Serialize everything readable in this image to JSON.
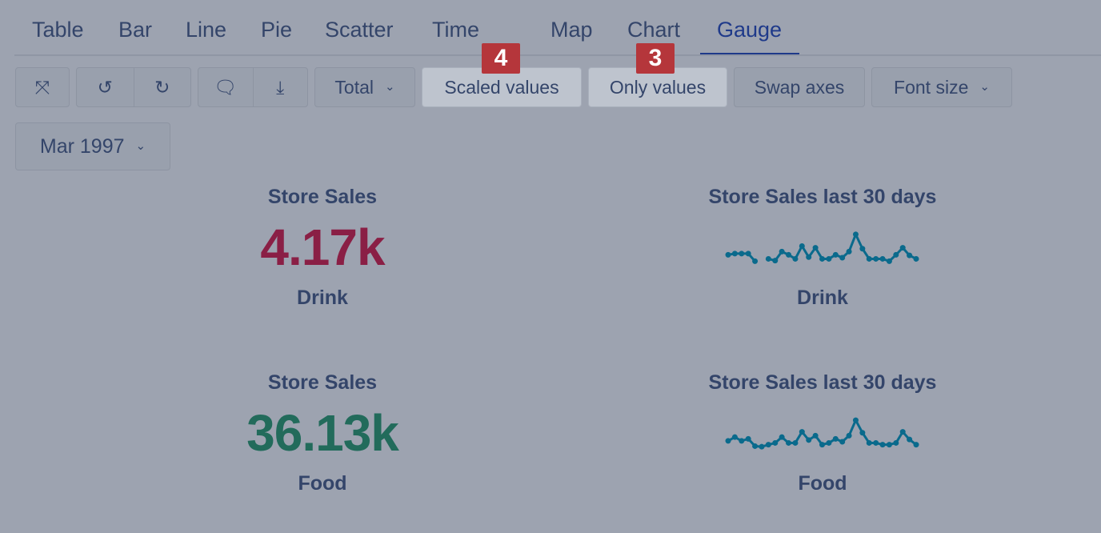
{
  "tabs": [
    "Table",
    "Bar",
    "Line",
    "Pie",
    "Scatter",
    "Time",
    "Map",
    "Chart",
    "Gauge"
  ],
  "active_tab": "Gauge",
  "toolbar": {
    "total": "Total",
    "scaled": "Scaled values",
    "only": "Only values",
    "swap": "Swap axes",
    "font": "Font size",
    "period": "Mar 1997"
  },
  "badges": [
    "4",
    "3"
  ],
  "gauges": [
    {
      "title": "Store Sales",
      "value": "4.17k",
      "label": "Drink",
      "color": "#8a1f45"
    },
    {
      "title": "Store Sales",
      "value": "36.13k",
      "label": "Food",
      "color": "#226b5b"
    }
  ],
  "sparklines": [
    {
      "title": "Store Sales last 30 days",
      "label": "Drink",
      "color": "#0a6a8c",
      "values": [
        32,
        36,
        36,
        36,
        10,
        null,
        18,
        12,
        43,
        32,
        18,
        62,
        24,
        56,
        18,
        18,
        32,
        22,
        43,
        102,
        53,
        18,
        18,
        18,
        10,
        32,
        56,
        30,
        18
      ]
    },
    {
      "title": "Store Sales last 30 days",
      "label": "Food",
      "color": "#0a6a8c",
      "values": [
        25,
        38,
        25,
        32,
        7,
        5,
        12,
        18,
        38,
        18,
        18,
        56,
        28,
        43,
        12,
        18,
        32,
        22,
        43,
        96,
        53,
        18,
        18,
        12,
        12,
        18,
        56,
        30,
        12
      ]
    }
  ]
}
